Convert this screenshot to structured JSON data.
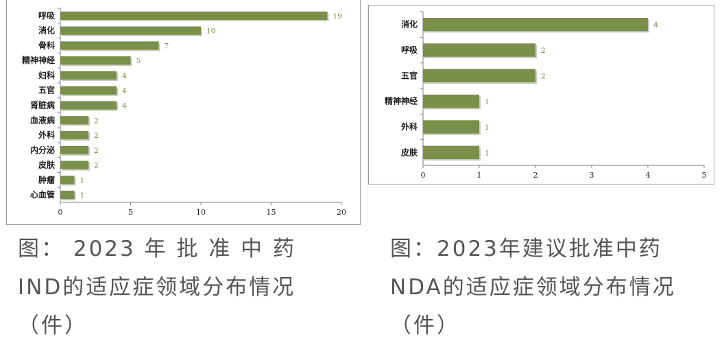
{
  "colors": {
    "bar": "#7a8f49",
    "bar_shadow": "#c9c9c9",
    "axis": "#7f7f7f",
    "data_label": "#6a8a3a",
    "caption": "#555555"
  },
  "chart_data": [
    {
      "type": "bar",
      "orientation": "horizontal",
      "title": "",
      "categories": [
        "呼吸",
        "消化",
        "骨科",
        "精神神经",
        "妇科",
        "五官",
        "肾脏病",
        "血液病",
        "外科",
        "内分泌",
        "皮肤",
        "肿瘤",
        "心血管"
      ],
      "values": [
        19,
        10,
        7,
        5,
        4,
        4,
        4,
        2,
        2,
        2,
        2,
        1,
        1
      ],
      "xlim": [
        0,
        20
      ],
      "xticks": [
        0,
        5,
        10,
        15,
        20
      ],
      "grid": false,
      "legend": false
    },
    {
      "type": "bar",
      "orientation": "horizontal",
      "title": "",
      "categories": [
        "消化",
        "呼吸",
        "五官",
        "精神神经",
        "外科",
        "皮肤"
      ],
      "values": [
        4,
        2,
        2,
        1,
        1,
        1
      ],
      "xlim": [
        0,
        5
      ],
      "xticks": [
        0,
        1,
        2,
        3,
        4,
        5
      ],
      "grid": false,
      "legend": false
    }
  ],
  "captions": {
    "left": "图： 2023 年 批 准 中 药IND的适应症领域分布情况（件）",
    "right": "图：2023年建议批准中药NDA的适应症领域分布情况（件）"
  }
}
